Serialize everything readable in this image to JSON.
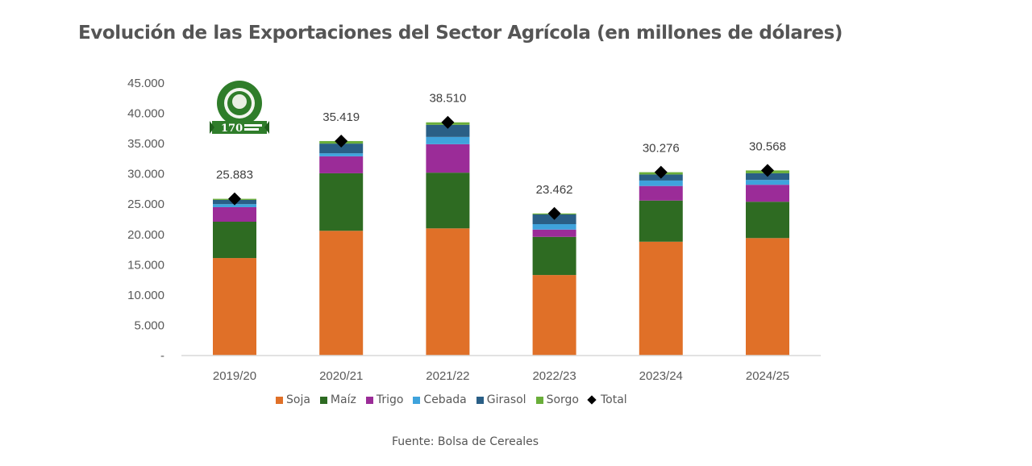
{
  "page": {
    "title": "Evolución de las Exportaciones del Sector Agrícola (en millones de dólares)",
    "source": "Fuente: Bolsa de Cereales",
    "logo": {
      "name": "Bolsa de Cereales",
      "badge_text": "170"
    }
  },
  "chart_data": {
    "type": "bar",
    "stacked": true,
    "title": "Evolución de las Exportaciones del Sector Agrícola (en millones de dólares)",
    "xlabel": "",
    "ylabel": "",
    "ylim": [
      0,
      45000
    ],
    "yticks": [
      0,
      5000,
      10000,
      15000,
      20000,
      25000,
      30000,
      35000,
      40000,
      45000
    ],
    "ytick_labels": [
      "-",
      "5.000",
      "10.000",
      "15.000",
      "20.000",
      "25.000",
      "30.000",
      "35.000",
      "40.000",
      "45.000"
    ],
    "grid": false,
    "legend_position": "bottom",
    "categories": [
      "2019/20",
      "2020/21",
      "2021/22",
      "2022/23",
      "2023/24",
      "2024/25"
    ],
    "series": [
      {
        "name": "Soja",
        "color": "#E07028",
        "values": [
          16100,
          20600,
          21000,
          13300,
          18800,
          19400
        ]
      },
      {
        "name": "Maíz",
        "color": "#2E6B22",
        "values": [
          6000,
          9500,
          9200,
          6300,
          6800,
          6000
        ]
      },
      {
        "name": "Trigo",
        "color": "#9B2C98",
        "values": [
          2400,
          2800,
          4700,
          1200,
          2400,
          2800
        ]
      },
      {
        "name": "Cebada",
        "color": "#3FA3DC",
        "values": [
          500,
          500,
          1200,
          900,
          900,
          800
        ]
      },
      {
        "name": "Girasol",
        "color": "#2A5F86",
        "values": [
          700,
          1600,
          2000,
          1600,
          1000,
          1100
        ]
      },
      {
        "name": "Sorgo",
        "color": "#6AAE3A",
        "values": [
          183,
          419,
          410,
          162,
          376,
          468
        ]
      }
    ],
    "total": {
      "name": "Total",
      "marker": "diamond",
      "color": "#000000",
      "values": [
        25883,
        35419,
        38510,
        23462,
        30276,
        30568
      ],
      "labels": [
        "25.883",
        "35.419",
        "38.510",
        "23.462",
        "30.276",
        "30.568"
      ]
    }
  }
}
